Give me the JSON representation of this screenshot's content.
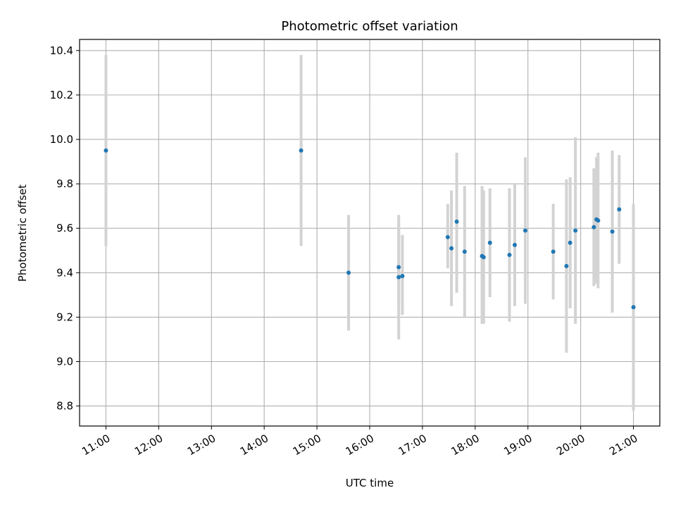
{
  "chart_data": {
    "type": "scatter",
    "title": "Photometric offset variation",
    "xlabel": "UTC time",
    "ylabel": "Photometric offset",
    "x_unit": "hours (UTC)",
    "xlim": [
      10.5,
      21.5
    ],
    "ylim": [
      8.71,
      10.45
    ],
    "x_ticks": [
      11,
      12,
      13,
      14,
      15,
      16,
      17,
      18,
      19,
      20,
      21
    ],
    "x_tick_labels": [
      "11:00",
      "12:00",
      "13:00",
      "14:00",
      "15:00",
      "16:00",
      "17:00",
      "18:00",
      "19:00",
      "20:00",
      "21:00"
    ],
    "y_ticks": [
      8.8,
      9.0,
      9.2,
      9.4,
      9.6,
      9.8,
      10.0,
      10.2,
      10.4
    ],
    "y_tick_labels": [
      "8.8",
      "9.0",
      "9.2",
      "9.4",
      "9.6",
      "9.8",
      "10.0",
      "10.2",
      "10.4"
    ],
    "grid": true,
    "point_color": "#1f77b4",
    "errorbar_color": "#d3d3d3",
    "points": [
      {
        "x": 11.0,
        "y": 9.95,
        "ylow": 9.52,
        "yhigh": 10.38
      },
      {
        "x": 14.7,
        "y": 9.95,
        "ylow": 9.52,
        "yhigh": 10.38
      },
      {
        "x": 15.6,
        "y": 9.4,
        "ylow": 9.14,
        "yhigh": 9.66
      },
      {
        "x": 16.55,
        "y": 9.425,
        "ylow": 9.24,
        "yhigh": 9.63
      },
      {
        "x": 16.55,
        "y": 9.38,
        "ylow": 9.1,
        "yhigh": 9.66
      },
      {
        "x": 16.62,
        "y": 9.385,
        "ylow": 9.21,
        "yhigh": 9.57
      },
      {
        "x": 17.48,
        "y": 9.56,
        "ylow": 9.42,
        "yhigh": 9.71
      },
      {
        "x": 17.55,
        "y": 9.51,
        "ylow": 9.25,
        "yhigh": 9.77
      },
      {
        "x": 17.65,
        "y": 9.63,
        "ylow": 9.31,
        "yhigh": 9.94
      },
      {
        "x": 17.8,
        "y": 9.495,
        "ylow": 9.2,
        "yhigh": 9.79
      },
      {
        "x": 18.13,
        "y": 9.475,
        "ylow": 9.17,
        "yhigh": 9.79
      },
      {
        "x": 18.16,
        "y": 9.47,
        "ylow": 9.17,
        "yhigh": 9.77
      },
      {
        "x": 18.28,
        "y": 9.535,
        "ylow": 9.29,
        "yhigh": 9.78
      },
      {
        "x": 18.65,
        "y": 9.48,
        "ylow": 9.18,
        "yhigh": 9.78
      },
      {
        "x": 18.75,
        "y": 9.525,
        "ylow": 9.25,
        "yhigh": 9.8
      },
      {
        "x": 18.95,
        "y": 9.59,
        "ylow": 9.26,
        "yhigh": 9.92
      },
      {
        "x": 19.48,
        "y": 9.495,
        "ylow": 9.28,
        "yhigh": 9.71
      },
      {
        "x": 19.73,
        "y": 9.43,
        "ylow": 9.04,
        "yhigh": 9.82
      },
      {
        "x": 19.8,
        "y": 9.535,
        "ylow": 9.24,
        "yhigh": 9.83
      },
      {
        "x": 19.9,
        "y": 9.59,
        "ylow": 9.17,
        "yhigh": 10.01
      },
      {
        "x": 20.25,
        "y": 9.605,
        "ylow": 9.34,
        "yhigh": 9.87
      },
      {
        "x": 20.3,
        "y": 9.64,
        "ylow": 9.35,
        "yhigh": 9.92
      },
      {
        "x": 20.33,
        "y": 9.635,
        "ylow": 9.33,
        "yhigh": 9.94
      },
      {
        "x": 20.6,
        "y": 9.585,
        "ylow": 9.22,
        "yhigh": 9.95
      },
      {
        "x": 20.73,
        "y": 9.685,
        "ylow": 9.44,
        "yhigh": 9.93
      },
      {
        "x": 21.0,
        "y": 9.245,
        "ylow": 8.78,
        "yhigh": 9.71
      }
    ]
  }
}
